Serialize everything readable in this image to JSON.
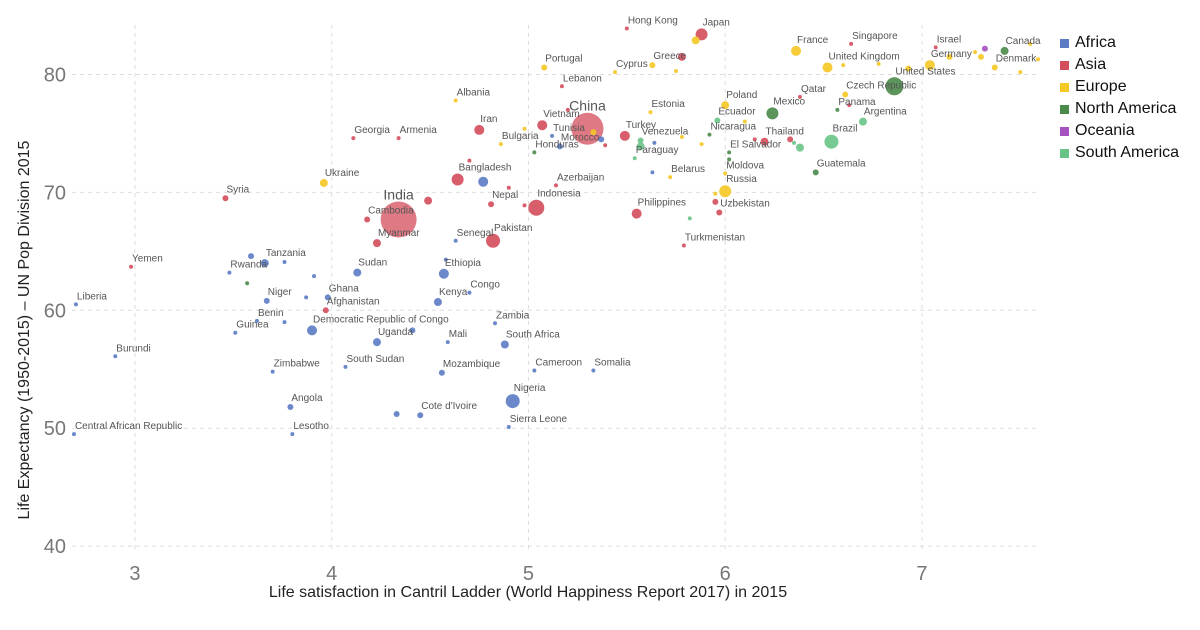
{
  "chart_data": {
    "type": "scatter",
    "title": "",
    "xlabel": "Life satisfaction in Cantril Ladder (World Happiness Report 2017) in 2015",
    "ylabel": "Life Expectancy (1950-2015) – UN Pop Division 2015",
    "xlim": [
      2.68,
      7.6
    ],
    "ylim": [
      39.5,
      84.2
    ],
    "xticks": [
      3,
      4,
      5,
      6,
      7
    ],
    "yticks": [
      40,
      50,
      60,
      70,
      80
    ],
    "grid": true,
    "legend_position": "top-right",
    "colors": {
      "Africa": "#5b7bc4",
      "Asia": "#d44d5c",
      "Europe": "#f5c824",
      "North America": "#4a8a4a",
      "Oceania": "#a551c0",
      "South America": "#68c486"
    },
    "legend": [
      "Africa",
      "Asia",
      "Europe",
      "North America",
      "Oceania",
      "South America"
    ],
    "points": [
      {
        "label": "Central African Republic",
        "x": 2.69,
        "y": 49.5,
        "group": "Africa",
        "size": 2
      },
      {
        "label": "Liberia",
        "x": 2.7,
        "y": 60.5,
        "group": "Africa",
        "size": 2
      },
      {
        "label": "Burundi",
        "x": 2.9,
        "y": 56.1,
        "group": "Africa",
        "size": 2
      },
      {
        "label": "Yemen",
        "x": 2.98,
        "y": 63.7,
        "group": "Asia",
        "size": 2
      },
      {
        "label": "Syria",
        "x": 3.46,
        "y": 69.5,
        "group": "Asia",
        "size": 3
      },
      {
        "label": "Rwanda",
        "x": 3.48,
        "y": 63.2,
        "group": "Africa",
        "size": 2
      },
      {
        "label": "",
        "x": 3.59,
        "y": 64.6,
        "group": "Africa",
        "size": 3
      },
      {
        "label": "Tanzania",
        "x": 3.66,
        "y": 64.0,
        "group": "Africa",
        "size": 4
      },
      {
        "label": "",
        "x": 3.76,
        "y": 64.1,
        "group": "Africa",
        "size": 2
      },
      {
        "label": "",
        "x": 3.57,
        "y": 62.3,
        "group": "North America",
        "size": 2
      },
      {
        "label": "Guinea",
        "x": 3.51,
        "y": 58.1,
        "group": "Africa",
        "size": 2
      },
      {
        "label": "Benin",
        "x": 3.62,
        "y": 59.1,
        "group": "Africa",
        "size": 2
      },
      {
        "label": "Niger",
        "x": 3.67,
        "y": 60.8,
        "group": "Africa",
        "size": 3
      },
      {
        "label": "",
        "x": 3.76,
        "y": 59.0,
        "group": "Africa",
        "size": 2
      },
      {
        "label": "",
        "x": 3.87,
        "y": 61.1,
        "group": "Africa",
        "size": 2
      },
      {
        "label": "Ghana",
        "x": 3.98,
        "y": 61.1,
        "group": "Africa",
        "size": 3
      },
      {
        "label": "",
        "x": 3.91,
        "y": 62.9,
        "group": "Africa",
        "size": 2
      },
      {
        "label": "Afghanistan",
        "x": 3.97,
        "y": 60.0,
        "group": "Asia",
        "size": 3
      },
      {
        "label": "Democratic Republic of Congo",
        "x": 3.9,
        "y": 58.3,
        "group": "Africa",
        "size": 5
      },
      {
        "label": "Zimbabwe",
        "x": 3.7,
        "y": 54.8,
        "group": "Africa",
        "size": 2
      },
      {
        "label": "Angola",
        "x": 3.79,
        "y": 51.8,
        "group": "Africa",
        "size": 3
      },
      {
        "label": "Lesotho",
        "x": 3.8,
        "y": 49.5,
        "group": "Africa",
        "size": 2
      },
      {
        "label": "Ukraine",
        "x": 3.96,
        "y": 70.8,
        "group": "Europe",
        "size": 4
      },
      {
        "label": "Georgia",
        "x": 4.11,
        "y": 74.6,
        "group": "Asia",
        "size": 2
      },
      {
        "label": "Armenia",
        "x": 4.34,
        "y": 74.6,
        "group": "Asia",
        "size": 2
      },
      {
        "label": "Albania",
        "x": 4.63,
        "y": 77.8,
        "group": "Europe",
        "size": 2
      },
      {
        "label": "Cambodia",
        "x": 4.18,
        "y": 67.7,
        "group": "Asia",
        "size": 3
      },
      {
        "label": "India",
        "x": 4.34,
        "y": 67.7,
        "group": "Asia",
        "size": 18
      },
      {
        "label": "",
        "x": 4.49,
        "y": 69.3,
        "group": "Asia",
        "size": 4
      },
      {
        "label": "Myanmar",
        "x": 4.23,
        "y": 65.7,
        "group": "Asia",
        "size": 4
      },
      {
        "label": "Sudan",
        "x": 4.13,
        "y": 63.2,
        "group": "Africa",
        "size": 4
      },
      {
        "label": "South Sudan",
        "x": 4.07,
        "y": 55.2,
        "group": "Africa",
        "size": 2
      },
      {
        "label": "Uganda",
        "x": 4.23,
        "y": 57.3,
        "group": "Africa",
        "size": 4
      },
      {
        "label": "",
        "x": 4.41,
        "y": 58.3,
        "group": "Africa",
        "size": 3
      },
      {
        "label": "Kenya",
        "x": 4.54,
        "y": 60.7,
        "group": "Africa",
        "size": 4
      },
      {
        "label": "",
        "x": 4.33,
        "y": 51.2,
        "group": "Africa",
        "size": 3
      },
      {
        "label": "Cote d'Ivoire",
        "x": 4.45,
        "y": 51.1,
        "group": "Africa",
        "size": 3
      },
      {
        "label": "Bangladesh",
        "x": 4.64,
        "y": 71.1,
        "group": "Asia",
        "size": 6
      },
      {
        "label": "",
        "x": 4.7,
        "y": 72.7,
        "group": "Asia",
        "size": 2
      },
      {
        "label": "Senegal",
        "x": 4.63,
        "y": 65.9,
        "group": "Africa",
        "size": 2
      },
      {
        "label": "Ethiopia",
        "x": 4.57,
        "y": 63.1,
        "group": "Africa",
        "size": 5
      },
      {
        "label": "",
        "x": 4.58,
        "y": 64.3,
        "group": "Africa",
        "size": 2
      },
      {
        "label": "Congo",
        "x": 4.7,
        "y": 61.5,
        "group": "Africa",
        "size": 2
      },
      {
        "label": "Mali",
        "x": 4.59,
        "y": 57.3,
        "group": "Africa",
        "size": 2
      },
      {
        "label": "Mozambique",
        "x": 4.56,
        "y": 54.7,
        "group": "Africa",
        "size": 3
      },
      {
        "label": "Iran",
        "x": 4.75,
        "y": 75.3,
        "group": "Asia",
        "size": 5
      },
      {
        "label": "",
        "x": 4.77,
        "y": 70.9,
        "group": "Africa",
        "size": 5
      },
      {
        "label": "Nepal",
        "x": 4.81,
        "y": 69.0,
        "group": "Asia",
        "size": 3
      },
      {
        "label": "",
        "x": 4.9,
        "y": 70.4,
        "group": "Asia",
        "size": 2
      },
      {
        "label": "Pakistan",
        "x": 4.82,
        "y": 65.9,
        "group": "Asia",
        "size": 7
      },
      {
        "label": "Zambia",
        "x": 4.83,
        "y": 58.9,
        "group": "Africa",
        "size": 2
      },
      {
        "label": "South Africa",
        "x": 4.88,
        "y": 57.1,
        "group": "Africa",
        "size": 4
      },
      {
        "label": "Nigeria",
        "x": 4.92,
        "y": 52.3,
        "group": "Africa",
        "size": 7
      },
      {
        "label": "Sierra Leone",
        "x": 4.9,
        "y": 50.1,
        "group": "Africa",
        "size": 2
      },
      {
        "label": "Bulgaria",
        "x": 4.86,
        "y": 74.1,
        "group": "Europe",
        "size": 2
      },
      {
        "label": "",
        "x": 4.98,
        "y": 75.4,
        "group": "Europe",
        "size": 2
      },
      {
        "label": "Honduras",
        "x": 5.03,
        "y": 73.4,
        "group": "North America",
        "size": 2
      },
      {
        "label": "Indonesia",
        "x": 5.04,
        "y": 68.7,
        "group": "Asia",
        "size": 8
      },
      {
        "label": "",
        "x": 4.98,
        "y": 68.9,
        "group": "Asia",
        "size": 2
      },
      {
        "label": "Azerbaijan",
        "x": 5.14,
        "y": 70.6,
        "group": "Asia",
        "size": 2
      },
      {
        "label": "Vietnam",
        "x": 5.07,
        "y": 75.7,
        "group": "Asia",
        "size": 5
      },
      {
        "label": "Tunisia",
        "x": 5.12,
        "y": 74.8,
        "group": "Africa",
        "size": 2
      },
      {
        "label": "Morocco",
        "x": 5.16,
        "y": 73.9,
        "group": "Africa",
        "size": 3
      },
      {
        "label": "China",
        "x": 5.3,
        "y": 75.4,
        "group": "Asia",
        "size": 16
      },
      {
        "label": "",
        "x": 5.37,
        "y": 74.5,
        "group": "Africa",
        "size": 3
      },
      {
        "label": "",
        "x": 5.33,
        "y": 75.1,
        "group": "Europe",
        "size": 3
      },
      {
        "label": "",
        "x": 5.39,
        "y": 74.0,
        "group": "Asia",
        "size": 2
      },
      {
        "label": "Cameroon",
        "x": 5.03,
        "y": 54.9,
        "group": "Africa",
        "size": 2
      },
      {
        "label": "Somalia",
        "x": 5.33,
        "y": 54.9,
        "group": "Africa",
        "size": 2
      },
      {
        "label": "Portugal",
        "x": 5.08,
        "y": 80.6,
        "group": "Europe",
        "size": 3
      },
      {
        "label": "Lebanon",
        "x": 5.17,
        "y": 79.0,
        "group": "Asia",
        "size": 2
      },
      {
        "label": "",
        "x": 5.2,
        "y": 77.0,
        "group": "Asia",
        "size": 2
      },
      {
        "label": "Cyprus",
        "x": 5.44,
        "y": 80.2,
        "group": "Europe",
        "size": 2
      },
      {
        "label": "Hong Kong",
        "x": 5.5,
        "y": 83.9,
        "group": "Asia",
        "size": 2
      },
      {
        "label": "Greece",
        "x": 5.63,
        "y": 80.8,
        "group": "Europe",
        "size": 3
      },
      {
        "label": "",
        "x": 5.78,
        "y": 81.5,
        "group": "Asia",
        "size": 4
      },
      {
        "label": "",
        "x": 5.75,
        "y": 80.3,
        "group": "Europe",
        "size": 2
      },
      {
        "label": "Japan",
        "x": 5.88,
        "y": 83.4,
        "group": "Asia",
        "size": 6
      },
      {
        "label": "",
        "x": 5.85,
        "y": 82.9,
        "group": "Europe",
        "size": 4
      },
      {
        "label": "Estonia",
        "x": 5.62,
        "y": 76.8,
        "group": "Europe",
        "size": 2
      },
      {
        "label": "Turkey",
        "x": 5.49,
        "y": 74.8,
        "group": "Asia",
        "size": 5
      },
      {
        "label": "Venezuela",
        "x": 5.57,
        "y": 74.4,
        "group": "South America",
        "size": 3
      },
      {
        "label": "",
        "x": 5.57,
        "y": 73.9,
        "group": "South America",
        "size": 4
      },
      {
        "label": "",
        "x": 5.64,
        "y": 74.2,
        "group": "Africa",
        "size": 2
      },
      {
        "label": "Paraguay",
        "x": 5.54,
        "y": 72.9,
        "group": "South America",
        "size": 2
      },
      {
        "label": "Belarus",
        "x": 5.72,
        "y": 71.3,
        "group": "Europe",
        "size": 2
      },
      {
        "label": "",
        "x": 5.63,
        "y": 71.7,
        "group": "Africa",
        "size": 2
      },
      {
        "label": "Philippines",
        "x": 5.55,
        "y": 68.2,
        "group": "Asia",
        "size": 5
      },
      {
        "label": "",
        "x": 5.82,
        "y": 67.8,
        "group": "South America",
        "size": 2
      },
      {
        "label": "Turkmenistan",
        "x": 5.79,
        "y": 65.5,
        "group": "Asia",
        "size": 2
      },
      {
        "label": "Poland",
        "x": 6.0,
        "y": 77.4,
        "group": "Europe",
        "size": 4
      },
      {
        "label": "Ecuador",
        "x": 5.96,
        "y": 76.1,
        "group": "South America",
        "size": 3
      },
      {
        "label": "Nicaragua",
        "x": 5.92,
        "y": 74.9,
        "group": "North America",
        "size": 2
      },
      {
        "label": "",
        "x": 5.88,
        "y": 74.1,
        "group": "Europe",
        "size": 2
      },
      {
        "label": "",
        "x": 5.78,
        "y": 74.7,
        "group": "Europe",
        "size": 2
      },
      {
        "label": "El Salvador",
        "x": 6.02,
        "y": 73.4,
        "group": "North America",
        "size": 2
      },
      {
        "label": "",
        "x": 6.02,
        "y": 72.8,
        "group": "North America",
        "size": 2
      },
      {
        "label": "Moldova",
        "x": 6.0,
        "y": 71.6,
        "group": "Europe",
        "size": 2
      },
      {
        "label": "Russia",
        "x": 6.0,
        "y": 70.1,
        "group": "Europe",
        "size": 6
      },
      {
        "label": "",
        "x": 5.95,
        "y": 69.9,
        "group": "Europe",
        "size": 2
      },
      {
        "label": "Uzbekistan",
        "x": 5.97,
        "y": 68.3,
        "group": "Asia",
        "size": 3
      },
      {
        "label": "",
        "x": 5.95,
        "y": 69.2,
        "group": "Asia",
        "size": 3
      },
      {
        "label": "Mexico",
        "x": 6.24,
        "y": 76.7,
        "group": "North America",
        "size": 6
      },
      {
        "label": "Qatar",
        "x": 6.38,
        "y": 78.1,
        "group": "Asia",
        "size": 2
      },
      {
        "label": "",
        "x": 6.1,
        "y": 76.0,
        "group": "Europe",
        "size": 2
      },
      {
        "label": "",
        "x": 6.15,
        "y": 74.5,
        "group": "Asia",
        "size": 2
      },
      {
        "label": "Thailand",
        "x": 6.2,
        "y": 74.3,
        "group": "Asia",
        "size": 4
      },
      {
        "label": "",
        "x": 6.33,
        "y": 74.5,
        "group": "Asia",
        "size": 3
      },
      {
        "label": "",
        "x": 6.35,
        "y": 74.2,
        "group": "South America",
        "size": 2
      },
      {
        "label": "",
        "x": 6.38,
        "y": 73.8,
        "group": "South America",
        "size": 4
      },
      {
        "label": "Czech Republic",
        "x": 6.61,
        "y": 78.3,
        "group": "Europe",
        "size": 3
      },
      {
        "label": "Panama",
        "x": 6.57,
        "y": 77.0,
        "group": "North America",
        "size": 2
      },
      {
        "label": "",
        "x": 6.63,
        "y": 77.4,
        "group": "Asia",
        "size": 2
      },
      {
        "label": "Argentina",
        "x": 6.7,
        "y": 76.0,
        "group": "South America",
        "size": 4
      },
      {
        "label": "Brazil",
        "x": 6.54,
        "y": 74.3,
        "group": "South America",
        "size": 7
      },
      {
        "label": "Guatemala",
        "x": 6.46,
        "y": 71.7,
        "group": "North America",
        "size": 3
      },
      {
        "label": "France",
        "x": 6.36,
        "y": 82.0,
        "group": "Europe",
        "size": 5
      },
      {
        "label": "United Kingdom",
        "x": 6.52,
        "y": 80.6,
        "group": "Europe",
        "size": 5
      },
      {
        "label": "",
        "x": 6.6,
        "y": 80.8,
        "group": "Europe",
        "size": 2
      },
      {
        "label": "Singapore",
        "x": 6.64,
        "y": 82.6,
        "group": "Asia",
        "size": 2
      },
      {
        "label": "",
        "x": 6.78,
        "y": 80.9,
        "group": "Europe",
        "size": 2
      },
      {
        "label": "United States",
        "x": 6.86,
        "y": 79.0,
        "group": "North America",
        "size": 9
      },
      {
        "label": "",
        "x": 6.93,
        "y": 80.5,
        "group": "Europe",
        "size": 3
      },
      {
        "label": "Germany",
        "x": 7.04,
        "y": 80.8,
        "group": "Europe",
        "size": 5
      },
      {
        "label": "Israel",
        "x": 7.07,
        "y": 82.3,
        "group": "Asia",
        "size": 2
      },
      {
        "label": "",
        "x": 7.14,
        "y": 81.5,
        "group": "Europe",
        "size": 3
      },
      {
        "label": "",
        "x": 7.27,
        "y": 81.9,
        "group": "Europe",
        "size": 2
      },
      {
        "label": "",
        "x": 7.32,
        "y": 82.2,
        "group": "Oceania",
        "size": 3
      },
      {
        "label": "",
        "x": 7.3,
        "y": 81.5,
        "group": "Europe",
        "size": 3
      },
      {
        "label": "Denmark",
        "x": 7.37,
        "y": 80.6,
        "group": "Europe",
        "size": 3
      },
      {
        "label": "Canada",
        "x": 7.42,
        "y": 82.0,
        "group": "North America",
        "size": 4
      },
      {
        "label": "",
        "x": 7.5,
        "y": 80.2,
        "group": "Europe",
        "size": 2
      },
      {
        "label": "",
        "x": 7.55,
        "y": 82.6,
        "group": "Europe",
        "size": 2
      },
      {
        "label": "",
        "x": 7.59,
        "y": 81.3,
        "group": "Europe",
        "size": 2
      }
    ]
  }
}
